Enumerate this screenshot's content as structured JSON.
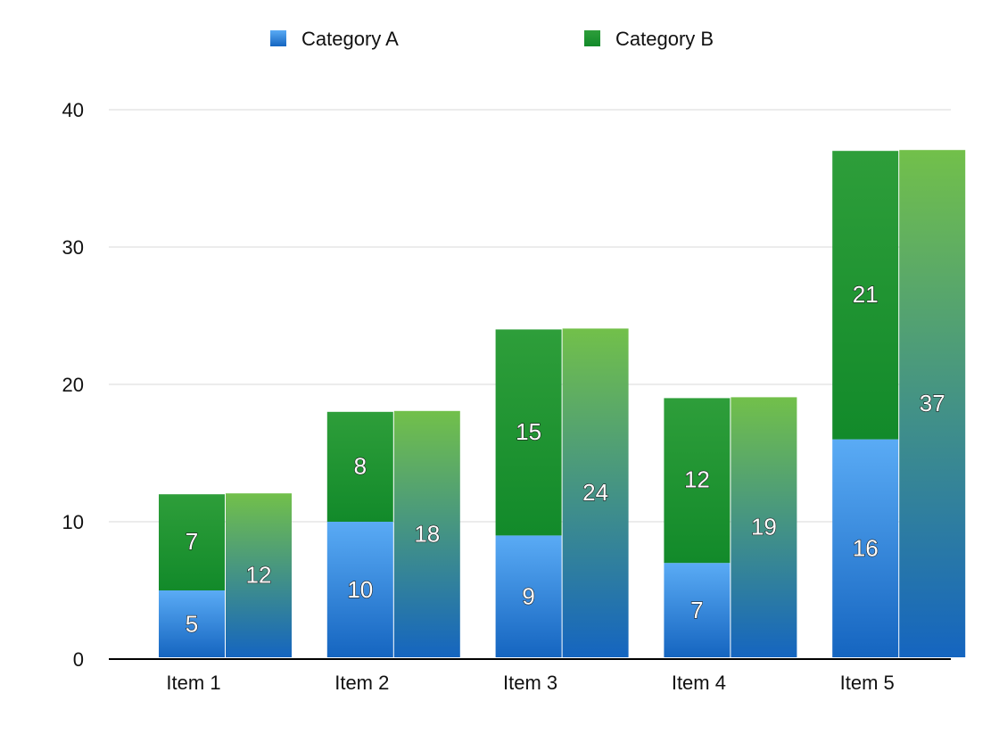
{
  "chart_data": {
    "type": "bar",
    "categories": [
      "Item 1",
      "Item 2",
      "Item 3",
      "Item 4",
      "Item 5"
    ],
    "series": [
      {
        "name": "Category A",
        "values": [
          5,
          10,
          9,
          7,
          16
        ]
      },
      {
        "name": "Category B",
        "values": [
          7,
          8,
          15,
          12,
          21
        ]
      }
    ],
    "totals": [
      12,
      18,
      24,
      19,
      37
    ],
    "ylim": [
      0,
      40
    ],
    "yticks": [
      0,
      10,
      20,
      30,
      40
    ],
    "grid": true,
    "legend_placement": "top",
    "title": "",
    "xlabel": "",
    "ylabel": "",
    "colors": {
      "category_a_top": "#5aabf5",
      "category_a_bottom": "#1565c0",
      "category_b_top": "#2e9e3a",
      "category_b_bottom": "#128a2a",
      "total_top": "#72c04a",
      "total_bottom": "#1565c0",
      "grid": "#d9d9d9",
      "axis": "#000000"
    }
  }
}
